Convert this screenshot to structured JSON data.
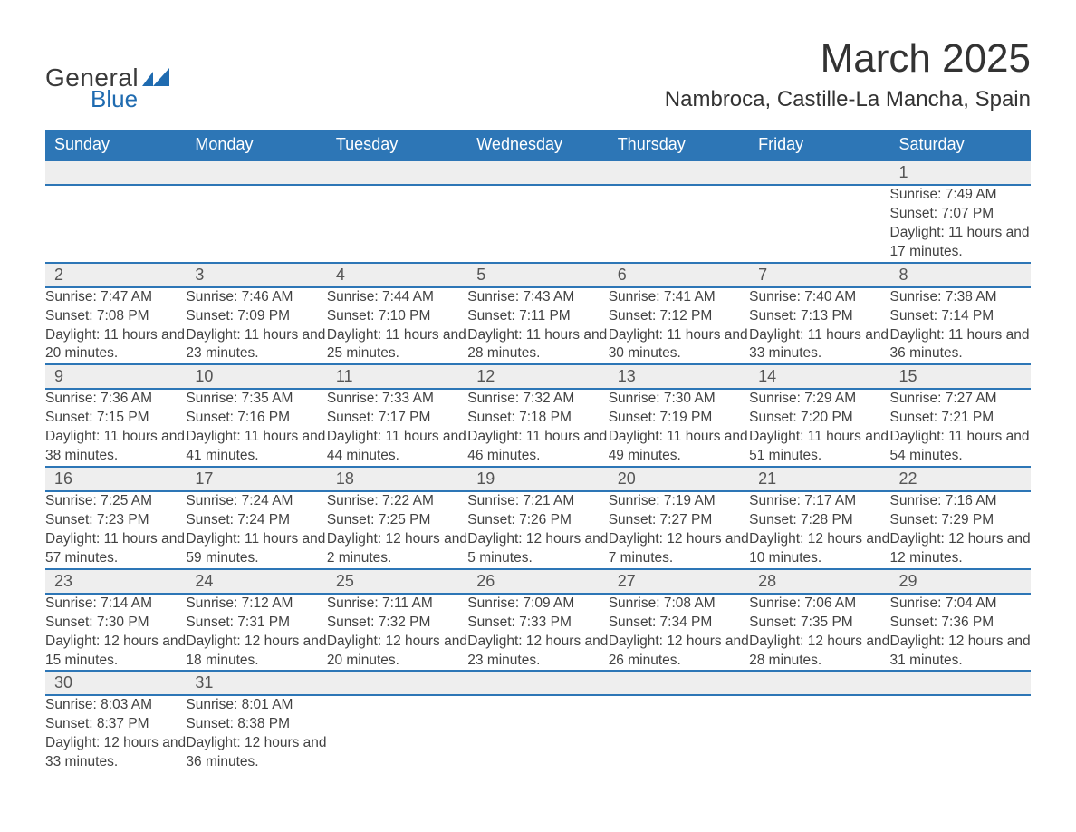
{
  "brand": {
    "word1": "General",
    "word2": "Blue",
    "color_primary": "#1f6bb0",
    "color_text": "#3a3a3a"
  },
  "title": {
    "month": "March 2025",
    "location": "Nambroca, Castille-La Mancha, Spain"
  },
  "calendar": {
    "type": "table",
    "header_bg": "#2d76b6",
    "header_fg": "#ffffff",
    "row_divider_color": "#2d76b6",
    "daynum_bg": "#eeeeee",
    "text_color": "#424242",
    "font_size_header": 18,
    "font_size_daynum": 18,
    "font_size_body": 15.5,
    "days": [
      "Sunday",
      "Monday",
      "Tuesday",
      "Wednesday",
      "Thursday",
      "Friday",
      "Saturday"
    ],
    "weeks": [
      [
        null,
        null,
        null,
        null,
        null,
        null,
        {
          "n": "1",
          "sunrise": "7:49 AM",
          "sunset": "7:07 PM",
          "daylight": "11 hours and 17 minutes."
        }
      ],
      [
        {
          "n": "2",
          "sunrise": "7:47 AM",
          "sunset": "7:08 PM",
          "daylight": "11 hours and 20 minutes."
        },
        {
          "n": "3",
          "sunrise": "7:46 AM",
          "sunset": "7:09 PM",
          "daylight": "11 hours and 23 minutes."
        },
        {
          "n": "4",
          "sunrise": "7:44 AM",
          "sunset": "7:10 PM",
          "daylight": "11 hours and 25 minutes."
        },
        {
          "n": "5",
          "sunrise": "7:43 AM",
          "sunset": "7:11 PM",
          "daylight": "11 hours and 28 minutes."
        },
        {
          "n": "6",
          "sunrise": "7:41 AM",
          "sunset": "7:12 PM",
          "daylight": "11 hours and 30 minutes."
        },
        {
          "n": "7",
          "sunrise": "7:40 AM",
          "sunset": "7:13 PM",
          "daylight": "11 hours and 33 minutes."
        },
        {
          "n": "8",
          "sunrise": "7:38 AM",
          "sunset": "7:14 PM",
          "daylight": "11 hours and 36 minutes."
        }
      ],
      [
        {
          "n": "9",
          "sunrise": "7:36 AM",
          "sunset": "7:15 PM",
          "daylight": "11 hours and 38 minutes."
        },
        {
          "n": "10",
          "sunrise": "7:35 AM",
          "sunset": "7:16 PM",
          "daylight": "11 hours and 41 minutes."
        },
        {
          "n": "11",
          "sunrise": "7:33 AM",
          "sunset": "7:17 PM",
          "daylight": "11 hours and 44 minutes."
        },
        {
          "n": "12",
          "sunrise": "7:32 AM",
          "sunset": "7:18 PM",
          "daylight": "11 hours and 46 minutes."
        },
        {
          "n": "13",
          "sunrise": "7:30 AM",
          "sunset": "7:19 PM",
          "daylight": "11 hours and 49 minutes."
        },
        {
          "n": "14",
          "sunrise": "7:29 AM",
          "sunset": "7:20 PM",
          "daylight": "11 hours and 51 minutes."
        },
        {
          "n": "15",
          "sunrise": "7:27 AM",
          "sunset": "7:21 PM",
          "daylight": "11 hours and 54 minutes."
        }
      ],
      [
        {
          "n": "16",
          "sunrise": "7:25 AM",
          "sunset": "7:23 PM",
          "daylight": "11 hours and 57 minutes."
        },
        {
          "n": "17",
          "sunrise": "7:24 AM",
          "sunset": "7:24 PM",
          "daylight": "11 hours and 59 minutes."
        },
        {
          "n": "18",
          "sunrise": "7:22 AM",
          "sunset": "7:25 PM",
          "daylight": "12 hours and 2 minutes."
        },
        {
          "n": "19",
          "sunrise": "7:21 AM",
          "sunset": "7:26 PM",
          "daylight": "12 hours and 5 minutes."
        },
        {
          "n": "20",
          "sunrise": "7:19 AM",
          "sunset": "7:27 PM",
          "daylight": "12 hours and 7 minutes."
        },
        {
          "n": "21",
          "sunrise": "7:17 AM",
          "sunset": "7:28 PM",
          "daylight": "12 hours and 10 minutes."
        },
        {
          "n": "22",
          "sunrise": "7:16 AM",
          "sunset": "7:29 PM",
          "daylight": "12 hours and 12 minutes."
        }
      ],
      [
        {
          "n": "23",
          "sunrise": "7:14 AM",
          "sunset": "7:30 PM",
          "daylight": "12 hours and 15 minutes."
        },
        {
          "n": "24",
          "sunrise": "7:12 AM",
          "sunset": "7:31 PM",
          "daylight": "12 hours and 18 minutes."
        },
        {
          "n": "25",
          "sunrise": "7:11 AM",
          "sunset": "7:32 PM",
          "daylight": "12 hours and 20 minutes."
        },
        {
          "n": "26",
          "sunrise": "7:09 AM",
          "sunset": "7:33 PM",
          "daylight": "12 hours and 23 minutes."
        },
        {
          "n": "27",
          "sunrise": "7:08 AM",
          "sunset": "7:34 PM",
          "daylight": "12 hours and 26 minutes."
        },
        {
          "n": "28",
          "sunrise": "7:06 AM",
          "sunset": "7:35 PM",
          "daylight": "12 hours and 28 minutes."
        },
        {
          "n": "29",
          "sunrise": "7:04 AM",
          "sunset": "7:36 PM",
          "daylight": "12 hours and 31 minutes."
        }
      ],
      [
        {
          "n": "30",
          "sunrise": "8:03 AM",
          "sunset": "8:37 PM",
          "daylight": "12 hours and 33 minutes."
        },
        {
          "n": "31",
          "sunrise": "8:01 AM",
          "sunset": "8:38 PM",
          "daylight": "12 hours and 36 minutes."
        },
        null,
        null,
        null,
        null,
        null
      ]
    ],
    "labels": {
      "sunrise": "Sunrise: ",
      "sunset": "Sunset: ",
      "daylight": "Daylight: "
    }
  }
}
